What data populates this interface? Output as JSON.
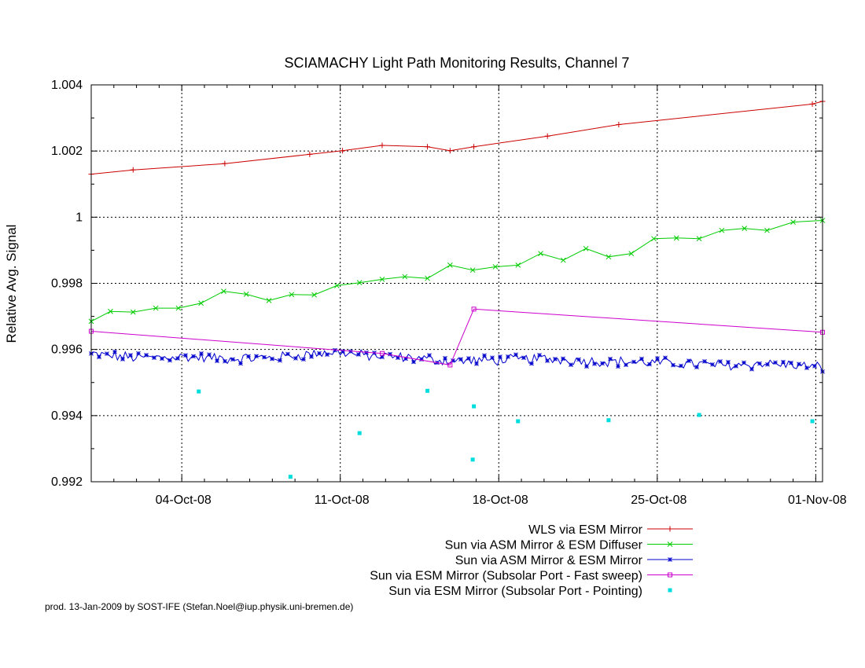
{
  "chart_data": {
    "type": "line",
    "title": "SCIAMACHY Light Path Monitoring Results, Channel 7",
    "xlabel": "",
    "ylabel": "Relative Avg. Signal",
    "x_range_days": [
      30,
      62.3
    ],
    "ylim": [
      0.992,
      1.004
    ],
    "x_ticks": [
      {
        "x": 34,
        "label": "04-Oct-08"
      },
      {
        "x": 41,
        "label": "11-Oct-08"
      },
      {
        "x": 48,
        "label": "18-Oct-08"
      },
      {
        "x": 55,
        "label": "25-Oct-08"
      },
      {
        "x": 62,
        "label": "01-Nov-08"
      }
    ],
    "y_ticks": [
      {
        "y": 0.992,
        "label": "0.992"
      },
      {
        "y": 0.994,
        "label": "0.994"
      },
      {
        "y": 0.996,
        "label": "0.996"
      },
      {
        "y": 0.998,
        "label": "0.998"
      },
      {
        "y": 1.0,
        "label": "1"
      },
      {
        "y": 1.002,
        "label": "1.002"
      },
      {
        "y": 1.004,
        "label": "1.004"
      }
    ],
    "grid": true,
    "legend_position": "bottom-right",
    "series": [
      {
        "name": "WLS via ESM Mirror",
        "color": "#cc0000",
        "marker": "plus",
        "points": [
          [
            30,
            1.0013
          ],
          [
            31.85,
            1.00143
          ],
          [
            35.9,
            1.00162
          ],
          [
            39.65,
            1.0019
          ],
          [
            41.1,
            1.00201
          ],
          [
            42.85,
            1.00217
          ],
          [
            44.85,
            1.00213
          ],
          [
            45.85,
            1.00201
          ],
          [
            46.9,
            1.00213
          ],
          [
            50.15,
            1.00245
          ],
          [
            53.3,
            1.0028
          ],
          [
            61.85,
            1.00342
          ],
          [
            62.3,
            1.0035
          ]
        ]
      },
      {
        "name": "Sun via ASM Mirror & ESM Diffuser",
        "color": "#00cc00",
        "marker": "x",
        "points": [
          [
            30,
            0.99685
          ],
          [
            30.85,
            0.99715
          ],
          [
            31.85,
            0.99713
          ],
          [
            32.85,
            0.99725
          ],
          [
            33.85,
            0.99725
          ],
          [
            34.85,
            0.9974
          ],
          [
            35.85,
            0.99776
          ],
          [
            36.85,
            0.99767
          ],
          [
            37.85,
            0.99748
          ],
          [
            38.85,
            0.99766
          ],
          [
            39.85,
            0.99765
          ],
          [
            40.85,
            0.99793
          ],
          [
            41.85,
            0.99802
          ],
          [
            42.85,
            0.99812
          ],
          [
            43.85,
            0.9982
          ],
          [
            44.85,
            0.99815
          ],
          [
            45.85,
            0.99855
          ],
          [
            46.85,
            0.9984
          ],
          [
            47.85,
            0.9985
          ],
          [
            48.85,
            0.99855
          ],
          [
            49.85,
            0.9989
          ],
          [
            50.85,
            0.9987
          ],
          [
            51.85,
            0.99905
          ],
          [
            52.85,
            0.9988
          ],
          [
            53.85,
            0.9989
          ],
          [
            54.85,
            0.99935
          ],
          [
            55.85,
            0.99937
          ],
          [
            56.85,
            0.99935
          ],
          [
            57.85,
            0.9996
          ],
          [
            58.85,
            0.99966
          ],
          [
            59.85,
            0.9996
          ],
          [
            61.0,
            0.99985
          ],
          [
            62.3,
            0.9999
          ]
        ]
      },
      {
        "name": "Sun via ASM Mirror & ESM Mirror",
        "color": "#0000cc",
        "marker": "star",
        "base_curve": [
          [
            30,
            0.99585
          ],
          [
            32,
            0.99575
          ],
          [
            34,
            0.99578
          ],
          [
            36,
            0.99572
          ],
          [
            38,
            0.99575
          ],
          [
            40,
            0.99588
          ],
          [
            41,
            0.99592
          ],
          [
            42,
            0.99582
          ],
          [
            44,
            0.99575
          ],
          [
            46,
            0.99565
          ],
          [
            48,
            0.99568
          ],
          [
            50,
            0.99572
          ],
          [
            52,
            0.99565
          ],
          [
            54,
            0.99562
          ],
          [
            56,
            0.99558
          ],
          [
            58,
            0.99552
          ],
          [
            60,
            0.99558
          ],
          [
            62.3,
            0.99545
          ]
        ],
        "amplitude": 0.00014,
        "num_points": 280
      },
      {
        "name": "Sun via ESM Mirror (Subsolar Port - Fast sweep)",
        "color": "#cc00cc",
        "marker": "square",
        "points": [
          [
            30,
            0.99655
          ],
          [
            42.85,
            0.99588
          ],
          [
            45.85,
            0.99553
          ],
          [
            46.9,
            0.99722
          ],
          [
            62.3,
            0.99652
          ]
        ]
      },
      {
        "name": "Sun via ESM Mirror (Subsolar Port - Pointing)",
        "color": "#00dddd",
        "marker": "dot",
        "points": [
          [
            34.75,
            0.99473
          ],
          [
            38.8,
            0.99215
          ],
          [
            41.85,
            0.99347
          ],
          [
            44.85,
            0.99475
          ],
          [
            46.85,
            0.99267
          ],
          [
            46.9,
            0.99428
          ],
          [
            48.85,
            0.99383
          ],
          [
            52.85,
            0.99386
          ],
          [
            56.85,
            0.99402
          ],
          [
            61.85,
            0.99383
          ]
        ]
      }
    ],
    "credit": "prod. 13-Jan-2009 by SOST-IFE (Stefan.Noel@iup.physik.uni-bremen.de)"
  }
}
